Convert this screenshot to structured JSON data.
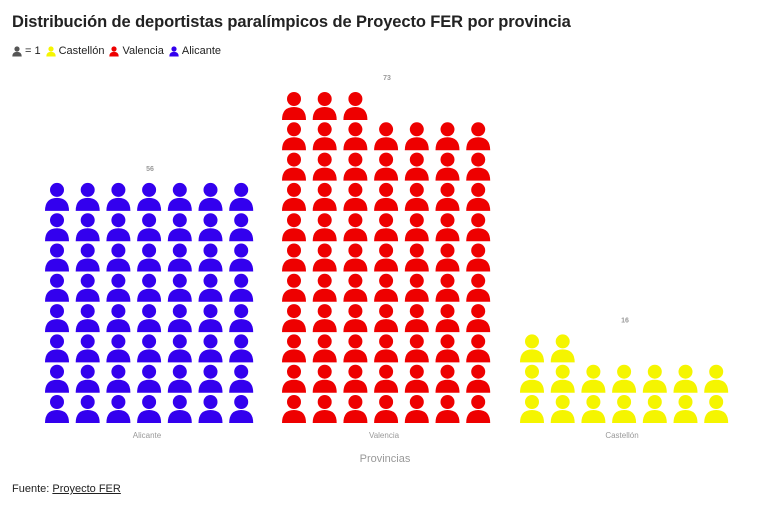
{
  "title": "Distribución de deportistas paralímpicos de Proyecto FER por provincia",
  "legend": {
    "unit_label": "= 1",
    "items": [
      {
        "label": "Castellón",
        "color": "#f5f500"
      },
      {
        "label": "Valencia",
        "color": "#ee0000"
      },
      {
        "label": "Alicante",
        "color": "#3300ee"
      }
    ]
  },
  "footer": {
    "prefix": "Fuente:",
    "source": "Proyecto FER"
  },
  "chart_data": {
    "type": "bar",
    "subtype": "pictogram",
    "icon": "person-icon",
    "units_per_icon": 1,
    "categories": [
      "Alicante",
      "Valencia",
      "Castellón"
    ],
    "values": [
      56,
      73,
      16
    ],
    "colors": [
      "#3300ee",
      "#ee0000",
      "#f5f500"
    ],
    "xlabel": "Provincias",
    "ylabel": "",
    "icons_per_row": 7
  }
}
